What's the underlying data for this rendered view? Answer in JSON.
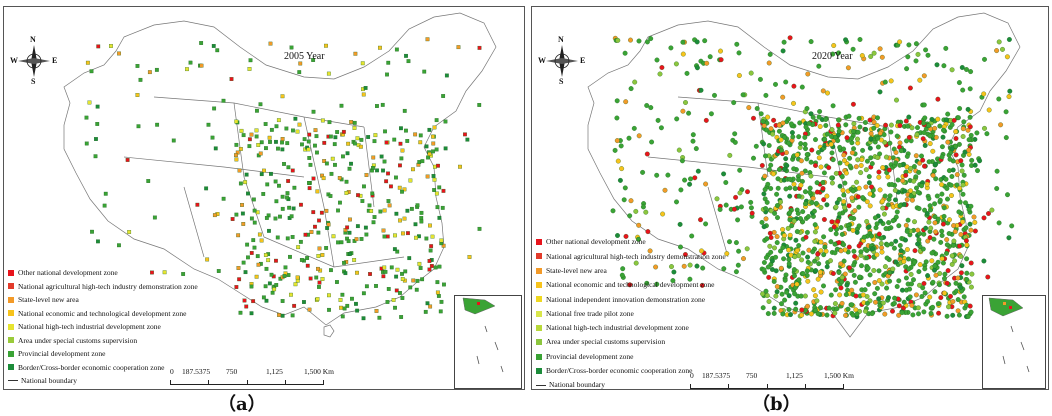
{
  "panels": [
    {
      "id": "a",
      "title": "2005 Year",
      "caption": "（a）",
      "compass": {
        "n": "N",
        "s": "S",
        "e": "E",
        "w": "W"
      },
      "legend": [
        {
          "label": "Other national development zone",
          "color": "#e8141c"
        },
        {
          "label": "National agricultural high-tech industry demonstration zone",
          "color": "#e23b2b"
        },
        {
          "label": "State-level new area",
          "color": "#f39a28"
        },
        {
          "label": "National economic and technological development zone",
          "color": "#f7c31c"
        },
        {
          "label": "National high-tech industrial development zone",
          "color": "#e6e430"
        },
        {
          "label": "Area under special customs supervision",
          "color": "#9acb3a"
        },
        {
          "label": "Provincial development zone",
          "color": "#3aa335"
        },
        {
          "label": "Border/Cross-border economic cooperation zone",
          "color": "#1c8c3a"
        },
        {
          "label": "National boundary",
          "color": "#333333",
          "kind": "line"
        }
      ],
      "scale": {
        "labels": [
          "0",
          "187.5375",
          "750",
          "1,125",
          "1,500"
        ],
        "unit": "Km"
      }
    },
    {
      "id": "b",
      "title": "2020 Year",
      "caption": "（b）",
      "compass": {
        "n": "N",
        "s": "S",
        "e": "E",
        "w": "W"
      },
      "legend": [
        {
          "label": "Other national development zone",
          "color": "#e8141c"
        },
        {
          "label": "National agricultural high-tech industry demonstration zone",
          "color": "#e23b2b"
        },
        {
          "label": "State-level new area",
          "color": "#f39a28"
        },
        {
          "label": "National economic and technological development zone",
          "color": "#f7c31c"
        },
        {
          "label": "National independent innovation demonstration zone",
          "color": "#efd820"
        },
        {
          "label": "National free trade pilot zone",
          "color": "#d9e64a"
        },
        {
          "label": "National high-tech industrial development zone",
          "color": "#b8d93a"
        },
        {
          "label": "Area under special customs supervision",
          "color": "#8cc63e"
        },
        {
          "label": "Provincial development zone",
          "color": "#3aa335"
        },
        {
          "label": "Border/Cross-border economic cooperation zone",
          "color": "#1c8c3a"
        },
        {
          "label": "National boundary",
          "color": "#333333",
          "kind": "line"
        }
      ],
      "scale": {
        "labels": [
          "0",
          "187.5375",
          "750",
          "1,125",
          "1,500"
        ],
        "unit": "Km"
      }
    }
  ]
}
